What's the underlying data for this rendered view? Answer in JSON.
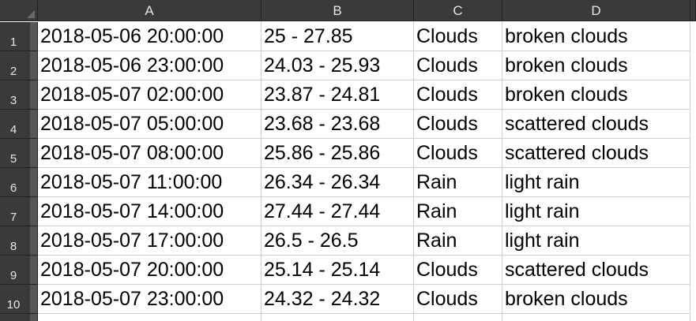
{
  "columns": [
    "A",
    "B",
    "C",
    "D"
  ],
  "rows": [
    {
      "num": "1",
      "cells": [
        "2018-05-06 20:00:00",
        "25 - 27.85",
        "Clouds",
        "broken clouds"
      ]
    },
    {
      "num": "2",
      "cells": [
        "2018-05-06 23:00:00",
        "24.03 - 25.93",
        "Clouds",
        "broken clouds"
      ]
    },
    {
      "num": "3",
      "cells": [
        "2018-05-07 02:00:00",
        "23.87 - 24.81",
        "Clouds",
        "broken clouds"
      ]
    },
    {
      "num": "4",
      "cells": [
        "2018-05-07 05:00:00",
        "23.68 - 23.68",
        "Clouds",
        "scattered clouds"
      ]
    },
    {
      "num": "5",
      "cells": [
        "2018-05-07 08:00:00",
        "25.86 - 25.86",
        "Clouds",
        "scattered clouds"
      ]
    },
    {
      "num": "6",
      "cells": [
        "2018-05-07 11:00:00",
        "26.34 - 26.34",
        "Rain",
        "light rain"
      ]
    },
    {
      "num": "7",
      "cells": [
        "2018-05-07 14:00:00",
        "27.44 - 27.44",
        "Rain",
        "light rain"
      ]
    },
    {
      "num": "8",
      "cells": [
        "2018-05-07 17:00:00",
        "26.5 - 26.5",
        "Rain",
        "light rain"
      ]
    },
    {
      "num": "9",
      "cells": [
        "2018-05-07 20:00:00",
        "25.14 - 25.14",
        "Clouds",
        "scattered clouds"
      ]
    },
    {
      "num": "10",
      "cells": [
        "2018-05-07 23:00:00",
        "24.32 - 24.32",
        "Clouds",
        "broken clouds"
      ]
    }
  ]
}
